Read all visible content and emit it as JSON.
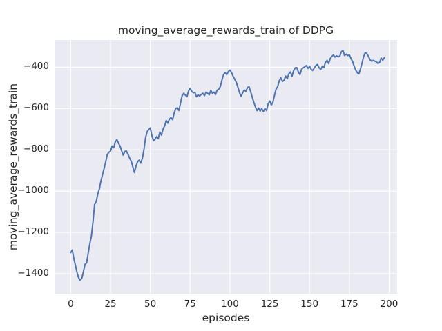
{
  "chart_data": {
    "type": "line",
    "title": "moving_average_rewards_train of DDPG",
    "xlabel": "episodes",
    "ylabel": "moving_average_rewards_train",
    "legend": null,
    "grid": true,
    "style": "seaborn-darkgrid",
    "xlim": [
      -9.7,
      205.0
    ],
    "ylim": [
      -1497,
      -268.5
    ],
    "xticks": [
      0,
      25,
      50,
      75,
      100,
      125,
      150,
      175,
      200
    ],
    "xtick_labels": [
      "0",
      "25",
      "50",
      "75",
      "100",
      "125",
      "150",
      "175",
      "200"
    ],
    "yticks": [
      -1400,
      -1200,
      -1000,
      -800,
      -600,
      -400
    ],
    "ytick_labels": [
      "−1400",
      "−1200",
      "−1000",
      "−800",
      "−600",
      "−400"
    ],
    "colors": {
      "line": "#4c72b0",
      "axes_bg": "#eaeaf2",
      "grid": "#ffffff",
      "text": "#262626",
      "figure_bg": "#ffffff"
    },
    "x_start": 0,
    "x_step": 1,
    "series": [
      {
        "name": "moving_average_rewards_train",
        "color": "#4c72b0",
        "values": [
          -1298,
          -1285,
          -1328,
          -1360,
          -1395,
          -1420,
          -1432,
          -1422,
          -1390,
          -1355,
          -1348,
          -1300,
          -1255,
          -1218,
          -1150,
          -1065,
          -1052,
          -1015,
          -990,
          -950,
          -920,
          -890,
          -858,
          -822,
          -812,
          -806,
          -782,
          -790,
          -762,
          -750,
          -768,
          -782,
          -805,
          -826,
          -808,
          -806,
          -822,
          -840,
          -855,
          -882,
          -910,
          -880,
          -858,
          -850,
          -864,
          -842,
          -800,
          -742,
          -712,
          -702,
          -694,
          -732,
          -756,
          -748,
          -736,
          -746,
          -714,
          -729,
          -700,
          -684,
          -658,
          -671,
          -651,
          -644,
          -654,
          -622,
          -600,
          -596,
          -610,
          -572,
          -538,
          -526,
          -535,
          -543,
          -516,
          -502,
          -517,
          -524,
          -522,
          -543,
          -534,
          -540,
          -532,
          -526,
          -538,
          -521,
          -526,
          -534,
          -512,
          -526,
          -521,
          -532,
          -511,
          -507,
          -493,
          -462,
          -436,
          -426,
          -436,
          -421,
          -414,
          -426,
          -444,
          -458,
          -473,
          -497,
          -522,
          -541,
          -524,
          -510,
          -518,
          -499,
          -494,
          -518,
          -545,
          -570,
          -592,
          -610,
          -598,
          -613,
          -600,
          -614,
          -600,
          -610,
          -578,
          -564,
          -583,
          -570,
          -536,
          -506,
          -494,
          -465,
          -452,
          -469,
          -463,
          -443,
          -456,
          -432,
          -423,
          -444,
          -417,
          -403,
          -402,
          -424,
          -436,
          -410,
          -403,
          -398,
          -392,
          -406,
          -396,
          -410,
          -416,
          -404,
          -392,
          -387,
          -403,
          -411,
          -397,
          -401,
          -377,
          -367,
          -382,
          -358,
          -348,
          -341,
          -351,
          -345,
          -350,
          -346,
          -325,
          -319,
          -344,
          -337,
          -344,
          -340,
          -358,
          -372,
          -395,
          -414,
          -427,
          -432,
          -408,
          -380,
          -348,
          -329,
          -335,
          -348,
          -364,
          -371,
          -367,
          -371,
          -374,
          -382,
          -377,
          -356,
          -366,
          -354
        ]
      }
    ]
  }
}
